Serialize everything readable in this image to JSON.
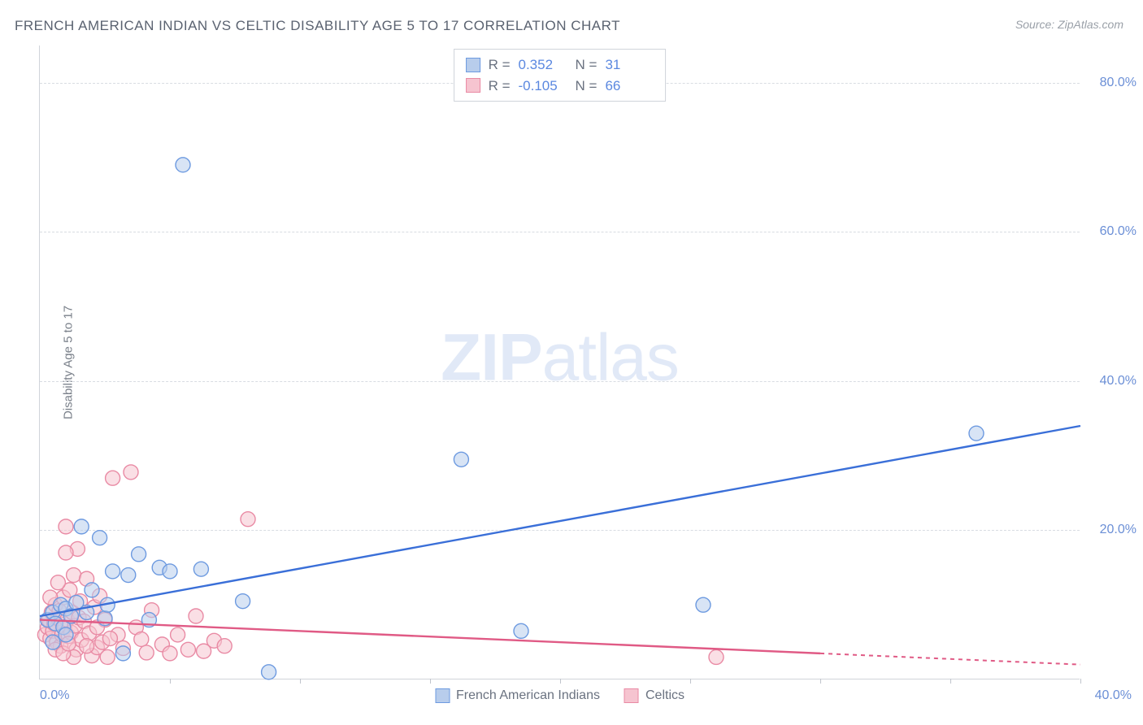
{
  "title": "FRENCH AMERICAN INDIAN VS CELTIC DISABILITY AGE 5 TO 17 CORRELATION CHART",
  "source": "Source: ZipAtlas.com",
  "ylabel": "Disability Age 5 to 17",
  "watermark_zip": "ZIP",
  "watermark_atlas": "atlas",
  "chart": {
    "type": "scatter",
    "xlim": [
      0,
      40
    ],
    "ylim": [
      0,
      85
    ],
    "xticks_label_left": "0.0%",
    "xticks_label_right": "40.0%",
    "xtick_positions": [
      5,
      10,
      15,
      20,
      25,
      30,
      35,
      40
    ],
    "yticks": [
      {
        "v": 20,
        "label": "20.0%"
      },
      {
        "v": 40,
        "label": "40.0%"
      },
      {
        "v": 60,
        "label": "60.0%"
      },
      {
        "v": 80,
        "label": "80.0%"
      }
    ],
    "grid_color": "#d8dce2",
    "background_color": "#ffffff",
    "marker_radius": 9,
    "marker_opacity": 0.55,
    "series": [
      {
        "name": "French American Indians",
        "color_fill": "#b8cdec",
        "color_stroke": "#6d9ae0",
        "r_label": "R =",
        "r_value": "0.352",
        "n_label": "N =",
        "n_value": "31",
        "trend": {
          "x1": 0,
          "y1": 8.5,
          "x2": 40,
          "y2": 34,
          "color": "#3a6fd8",
          "dash_from_x": null
        },
        "points": [
          [
            0.3,
            8
          ],
          [
            0.5,
            9
          ],
          [
            0.6,
            7.5
          ],
          [
            0.8,
            10
          ],
          [
            0.9,
            7
          ],
          [
            1.0,
            9.5
          ],
          [
            1.2,
            8.5
          ],
          [
            1.4,
            10.3
          ],
          [
            1.6,
            20.5
          ],
          [
            1.8,
            9
          ],
          [
            2.0,
            12
          ],
          [
            2.3,
            19
          ],
          [
            2.5,
            8.2
          ],
          [
            2.6,
            10
          ],
          [
            2.8,
            14.5
          ],
          [
            3.2,
            3.5
          ],
          [
            3.4,
            14
          ],
          [
            3.8,
            16.8
          ],
          [
            4.2,
            8
          ],
          [
            4.6,
            15
          ],
          [
            5.0,
            14.5
          ],
          [
            5.5,
            69
          ],
          [
            6.2,
            14.8
          ],
          [
            7.8,
            10.5
          ],
          [
            8.8,
            1
          ],
          [
            16.2,
            29.5
          ],
          [
            18.5,
            6.5
          ],
          [
            25.5,
            10
          ],
          [
            36.0,
            33
          ],
          [
            1.0,
            6
          ],
          [
            0.5,
            5
          ]
        ]
      },
      {
        "name": "Celtics",
        "color_fill": "#f6c4d0",
        "color_stroke": "#e98aa4",
        "r_label": "R =",
        "r_value": "-0.105",
        "n_label": "N =",
        "n_value": "66",
        "trend": {
          "x1": 0,
          "y1": 8,
          "x2": 40,
          "y2": 2,
          "color": "#e05a85",
          "dash_from_x": 30
        },
        "points": [
          [
            0.2,
            6
          ],
          [
            0.3,
            7
          ],
          [
            0.35,
            8
          ],
          [
            0.4,
            5.5
          ],
          [
            0.45,
            9
          ],
          [
            0.5,
            6.5
          ],
          [
            0.55,
            7.5
          ],
          [
            0.6,
            10
          ],
          [
            0.65,
            5
          ],
          [
            0.7,
            8.2
          ],
          [
            0.75,
            9.2
          ],
          [
            0.8,
            4.5
          ],
          [
            0.85,
            6
          ],
          [
            0.9,
            11
          ],
          [
            0.95,
            7
          ],
          [
            1.0,
            20.5
          ],
          [
            1.05,
            8
          ],
          [
            1.1,
            5.8
          ],
          [
            1.15,
            12
          ],
          [
            1.2,
            6.3
          ],
          [
            1.25,
            9
          ],
          [
            1.3,
            14
          ],
          [
            1.35,
            7.2
          ],
          [
            1.4,
            4
          ],
          [
            1.45,
            17.5
          ],
          [
            1.5,
            8.3
          ],
          [
            1.55,
            10.5
          ],
          [
            1.6,
            5.3
          ],
          [
            1.7,
            7.8
          ],
          [
            1.8,
            13.5
          ],
          [
            1.9,
            6.2
          ],
          [
            2.0,
            3.2
          ],
          [
            2.1,
            9.7
          ],
          [
            2.2,
            4.3
          ],
          [
            2.3,
            11.2
          ],
          [
            2.4,
            5.0
          ],
          [
            2.5,
            8.0
          ],
          [
            2.6,
            3.0
          ],
          [
            2.8,
            27
          ],
          [
            3.0,
            6
          ],
          [
            3.2,
            4.2
          ],
          [
            3.5,
            27.8
          ],
          [
            3.7,
            7
          ],
          [
            3.9,
            5.4
          ],
          [
            4.1,
            3.6
          ],
          [
            4.3,
            9.3
          ],
          [
            4.7,
            4.7
          ],
          [
            5.0,
            3.5
          ],
          [
            5.3,
            6.0
          ],
          [
            5.7,
            4.0
          ],
          [
            6.0,
            8.5
          ],
          [
            6.3,
            3.8
          ],
          [
            6.7,
            5.2
          ],
          [
            7.1,
            4.5
          ],
          [
            8.0,
            21.5
          ],
          [
            1.0,
            17
          ],
          [
            1.3,
            3
          ],
          [
            1.8,
            4.5
          ],
          [
            2.2,
            7
          ],
          [
            2.7,
            5.5
          ],
          [
            0.6,
            4
          ],
          [
            0.9,
            3.5
          ],
          [
            26.0,
            3
          ],
          [
            0.4,
            11
          ],
          [
            0.7,
            13
          ],
          [
            1.1,
            4.8
          ]
        ]
      }
    ]
  },
  "legend": {
    "blue_swatch_fill": "#b8cdec",
    "blue_swatch_stroke": "#6d9ae0",
    "pink_swatch_fill": "#f6c4d0",
    "pink_swatch_stroke": "#e98aa4"
  }
}
